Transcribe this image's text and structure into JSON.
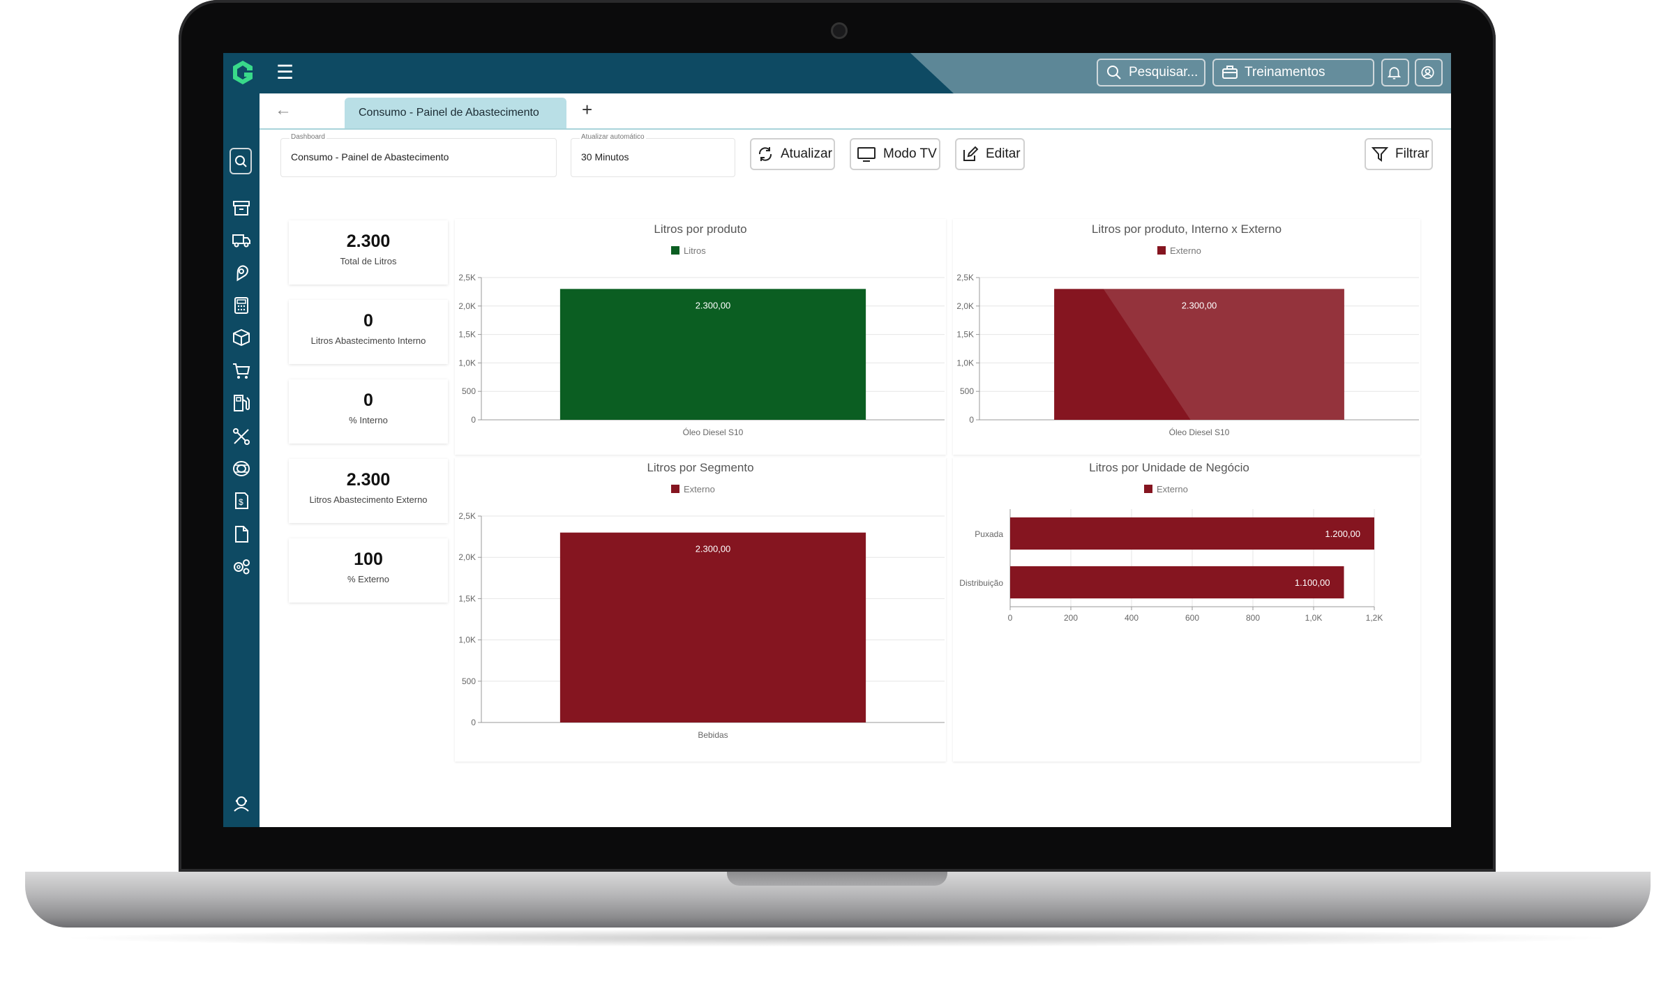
{
  "header": {
    "search_label": "Pesquisar...",
    "trainings_label": "Treinamentos"
  },
  "tabs": [
    {
      "label": "Consumo - Painel de Abastecimento"
    }
  ],
  "filters": {
    "dashboard_label": "Dashboard",
    "dashboard_value": "Consumo - Painel  de Abastecimento",
    "auto_update_label": "Atualizar automático",
    "auto_update_value": "30 Minutos"
  },
  "actions": {
    "update": "Atualizar",
    "tv_mode": "Modo TV",
    "edit": "Editar",
    "filter": "Filtrar"
  },
  "kpis": [
    {
      "value": "2.300",
      "label": "Total de Litros"
    },
    {
      "value": "0",
      "label": "Litros Abastecimento Interno"
    },
    {
      "value": "0",
      "label": "% Interno"
    },
    {
      "value": "2.300",
      "label": "Litros Abastecimento Externo"
    },
    {
      "value": "100",
      "label": "% Externo"
    }
  ],
  "colors": {
    "green": "#0b5e22",
    "red": "#851520",
    "topbar": "#0e4a63"
  },
  "chart_data": [
    {
      "type": "bar",
      "title": "Litros por produto",
      "categories": [
        "Óleo Diesel S10"
      ],
      "series": [
        {
          "name": "Litros",
          "values": [
            2300
          ],
          "color": "#0b5e22"
        }
      ],
      "data_labels": [
        "2.300,00"
      ],
      "yticks": [
        "0",
        "500",
        "1,0K",
        "1,5K",
        "2,0K",
        "2,5K"
      ],
      "ylim": [
        0,
        2500
      ]
    },
    {
      "type": "bar",
      "title": "Litros por produto, Interno x Externo",
      "categories": [
        "Óleo Diesel S10"
      ],
      "series": [
        {
          "name": "Externo",
          "values": [
            2300
          ],
          "color": "#851520"
        }
      ],
      "data_labels": [
        "2.300,00"
      ],
      "yticks": [
        "0",
        "500",
        "1,0K",
        "1,5K",
        "2,0K",
        "2,5K"
      ],
      "ylim": [
        0,
        2500
      ]
    },
    {
      "type": "bar",
      "title": "Litros por Segmento",
      "categories": [
        "Bebidas"
      ],
      "series": [
        {
          "name": "Externo",
          "values": [
            2300
          ],
          "color": "#851520"
        }
      ],
      "data_labels": [
        "2.300,00"
      ],
      "yticks": [
        "0",
        "500",
        "1,0K",
        "1,5K",
        "2,0K",
        "2,5K"
      ],
      "ylim": [
        0,
        2500
      ]
    },
    {
      "type": "bar",
      "orientation": "horizontal",
      "title": "Litros por Unidade de Negócio",
      "categories": [
        "Puxada",
        "Distribuição"
      ],
      "series": [
        {
          "name": "Externo",
          "values": [
            1200,
            1100
          ],
          "color": "#851520"
        }
      ],
      "data_labels": [
        "1.200,00",
        "1.100,00"
      ],
      "xticks": [
        "0",
        "200",
        "400",
        "600",
        "800",
        "1,0K",
        "1,2K"
      ],
      "xlim": [
        0,
        1200
      ]
    }
  ]
}
